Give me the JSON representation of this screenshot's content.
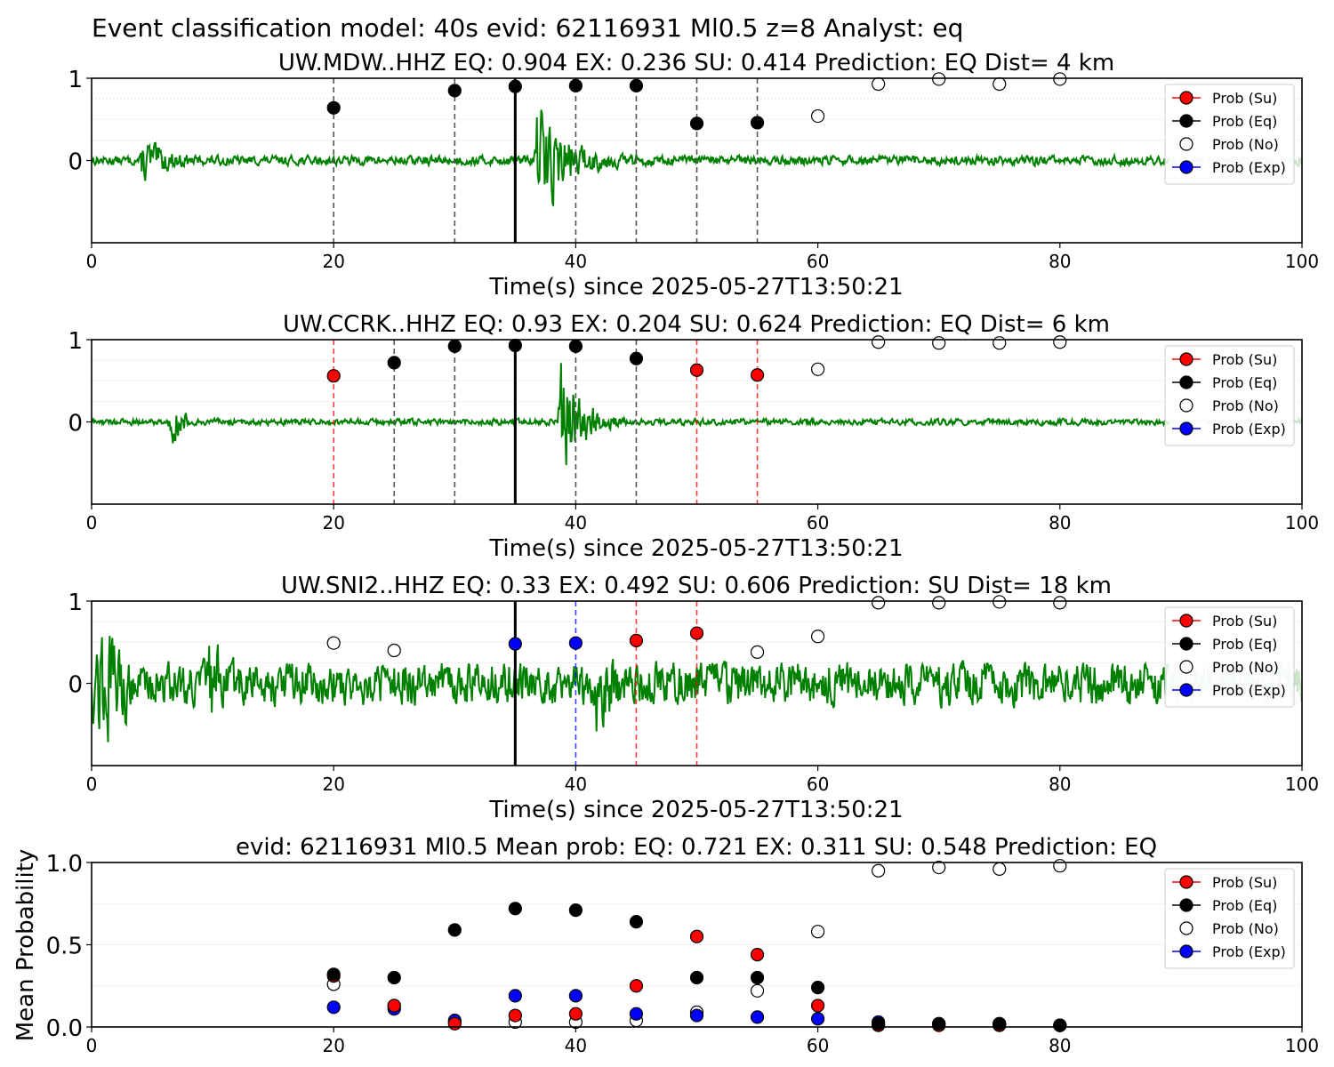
{
  "figure": {
    "suptitle": "Event classification model: 40s evid: 62116931 Ml0.5 z=8 Analyst: eq"
  },
  "colors": {
    "waveform": "#008000",
    "waveform_faded": "#c9e3c9",
    "su": "#ff0000",
    "eq": "#000000",
    "no": "#ffffff",
    "exp": "#0000ff",
    "grid": "#dddddd"
  },
  "legend": {
    "entries": [
      "Prob (Su)",
      "Prob (Eq)",
      "Prob (No)",
      "Prob (Exp)"
    ],
    "placement": "upper-right"
  },
  "chart_data": [
    {
      "type": "line",
      "title": "UW.MDW..HHZ   EQ: 0.904  EX: 0.236  SU: 0.414   Prediction: EQ    Dist= 4 km",
      "xlabel": "Time(s) since 2025-05-27T13:50:21",
      "ylabel": "",
      "xlim": [
        0,
        100
      ],
      "ylim": [
        -1,
        1
      ],
      "xticks": [
        "0",
        "20",
        "40",
        "60",
        "80",
        "100"
      ],
      "yticks": [
        "0",
        "1"
      ],
      "pick_time": 35,
      "window_lines": [
        {
          "x": 20,
          "class": "eq"
        },
        {
          "x": 30,
          "class": "eq"
        },
        {
          "x": 40,
          "class": "eq"
        },
        {
          "x": 45,
          "class": "eq"
        },
        {
          "x": 50,
          "class": "eq"
        },
        {
          "x": 55,
          "class": "eq"
        }
      ],
      "markers": [
        {
          "x": 20,
          "y": 0.64,
          "class": "eq"
        },
        {
          "x": 30,
          "y": 0.85,
          "class": "eq"
        },
        {
          "x": 35,
          "y": 0.9,
          "class": "eq"
        },
        {
          "x": 40,
          "y": 0.91,
          "class": "eq"
        },
        {
          "x": 45,
          "y": 0.91,
          "class": "eq"
        },
        {
          "x": 50,
          "y": 0.45,
          "class": "eq"
        },
        {
          "x": 55,
          "y": 0.46,
          "class": "eq"
        },
        {
          "x": 60,
          "y": 0.54,
          "class": "no"
        },
        {
          "x": 65,
          "y": 0.93,
          "class": "no"
        },
        {
          "x": 70,
          "y": 0.99,
          "class": "no"
        },
        {
          "x": 75,
          "y": 0.93,
          "class": "no"
        },
        {
          "x": 80,
          "y": 0.99,
          "class": "no"
        }
      ],
      "waveform": {
        "noise": 0.06,
        "bursts": [
          {
            "start": 4,
            "end": 8,
            "peak": 0.35,
            "decay": 1.5
          },
          {
            "start": 36.5,
            "end": 46,
            "peak": 0.9,
            "decay": 2.2
          }
        ]
      }
    },
    {
      "type": "line",
      "title": "UW.CCRK..HHZ   EQ: 0.93  EX: 0.204  SU: 0.624   Prediction: EQ    Dist= 6 km",
      "xlabel": "Time(s) since 2025-05-27T13:50:21",
      "ylabel": "",
      "xlim": [
        0,
        100
      ],
      "ylim": [
        -1,
        1
      ],
      "xticks": [
        "0",
        "20",
        "40",
        "60",
        "80",
        "100"
      ],
      "yticks": [
        "0",
        "1"
      ],
      "pick_time": 35,
      "window_lines": [
        {
          "x": 20,
          "class": "su"
        },
        {
          "x": 25,
          "class": "eq"
        },
        {
          "x": 30,
          "class": "eq"
        },
        {
          "x": 40,
          "class": "eq"
        },
        {
          "x": 45,
          "class": "eq"
        },
        {
          "x": 50,
          "class": "su"
        },
        {
          "x": 55,
          "class": "su"
        }
      ],
      "markers": [
        {
          "x": 20,
          "y": 0.56,
          "class": "su"
        },
        {
          "x": 25,
          "y": 0.72,
          "class": "eq"
        },
        {
          "x": 30,
          "y": 0.92,
          "class": "eq"
        },
        {
          "x": 35,
          "y": 0.93,
          "class": "eq"
        },
        {
          "x": 40,
          "y": 0.92,
          "class": "eq"
        },
        {
          "x": 45,
          "y": 0.77,
          "class": "eq"
        },
        {
          "x": 50,
          "y": 0.63,
          "class": "su"
        },
        {
          "x": 55,
          "y": 0.57,
          "class": "su"
        },
        {
          "x": 60,
          "y": 0.64,
          "class": "no"
        },
        {
          "x": 65,
          "y": 0.97,
          "class": "no"
        },
        {
          "x": 70,
          "y": 0.96,
          "class": "no"
        },
        {
          "x": 75,
          "y": 0.96,
          "class": "no"
        },
        {
          "x": 80,
          "y": 0.97,
          "class": "no"
        }
      ],
      "waveform": {
        "noise": 0.04,
        "bursts": [
          {
            "start": 6.3,
            "end": 8,
            "peak": 0.35,
            "decay": 1.0
          },
          {
            "start": 38.5,
            "end": 44,
            "peak": 0.95,
            "decay": 1.6
          }
        ]
      }
    },
    {
      "type": "line",
      "title": "UW.SNI2..HHZ   EQ: 0.33  EX: 0.492  SU: 0.606   Prediction: SU    Dist= 18 km",
      "xlabel": "Time(s) since 2025-05-27T13:50:21",
      "ylabel": "",
      "xlim": [
        0,
        100
      ],
      "ylim": [
        -1,
        1
      ],
      "xticks": [
        "0",
        "20",
        "40",
        "60",
        "80",
        "100"
      ],
      "yticks": [
        "0",
        "1"
      ],
      "pick_time": 35,
      "window_lines": [
        {
          "x": 40,
          "class": "exp"
        },
        {
          "x": 45,
          "class": "su"
        },
        {
          "x": 50,
          "class": "su"
        }
      ],
      "markers": [
        {
          "x": 20,
          "y": 0.49,
          "class": "no"
        },
        {
          "x": 25,
          "y": 0.4,
          "class": "no"
        },
        {
          "x": 35,
          "y": 0.48,
          "class": "exp"
        },
        {
          "x": 40,
          "y": 0.49,
          "class": "exp"
        },
        {
          "x": 45,
          "y": 0.52,
          "class": "su"
        },
        {
          "x": 50,
          "y": 0.61,
          "class": "su"
        },
        {
          "x": 55,
          "y": 0.38,
          "class": "no"
        },
        {
          "x": 60,
          "y": 0.57,
          "class": "no"
        },
        {
          "x": 65,
          "y": 0.98,
          "class": "no"
        },
        {
          "x": 70,
          "y": 0.98,
          "class": "no"
        },
        {
          "x": 75,
          "y": 0.99,
          "class": "no"
        },
        {
          "x": 80,
          "y": 0.98,
          "class": "no"
        }
      ],
      "waveform": {
        "noise": 0.28,
        "bursts": [
          {
            "start": 0,
            "end": 3,
            "peak": 0.75,
            "decay": 2.5
          },
          {
            "start": 9.5,
            "end": 10.5,
            "peak": 0.8,
            "decay": 0.6
          },
          {
            "start": 41.5,
            "end": 43.5,
            "peak": 0.95,
            "decay": 0.8
          }
        ]
      }
    },
    {
      "type": "scatter",
      "title": "evid: 62116931  Ml0.5   Mean prob:   EQ: 0.721  EX: 0.311  SU: 0.548   Prediction: EQ",
      "xlabel": "",
      "ylabel": "Mean Probability",
      "xlim": [
        0,
        100
      ],
      "ylim": [
        0,
        1
      ],
      "xticks": [
        "0",
        "20",
        "40",
        "60",
        "80",
        "100"
      ],
      "yticks": [
        "0.0",
        "0.5",
        "1.0"
      ],
      "x": [
        20,
        25,
        30,
        35,
        40,
        45,
        50,
        55,
        60,
        65,
        70,
        75,
        80
      ],
      "series": [
        {
          "name": "Prob (No)",
          "class": "no",
          "values": [
            0.26,
            0.13,
            0.03,
            0.03,
            0.03,
            0.04,
            0.09,
            0.22,
            0.58,
            0.95,
            0.97,
            0.96,
            0.98
          ]
        },
        {
          "name": "Prob (Exp)",
          "class": "exp",
          "values": [
            0.12,
            0.11,
            0.04,
            0.19,
            0.19,
            0.08,
            0.07,
            0.06,
            0.05,
            0.03,
            0.02,
            0.02,
            0.01
          ]
        },
        {
          "name": "Prob (Su)",
          "class": "su",
          "values": [
            0.31,
            0.13,
            0.02,
            0.07,
            0.08,
            0.25,
            0.55,
            0.44,
            0.13,
            0.01,
            0.01,
            0.01,
            0.01
          ]
        },
        {
          "name": "Prob (Eq)",
          "class": "eq",
          "values": [
            0.32,
            0.3,
            0.59,
            0.72,
            0.71,
            0.64,
            0.3,
            0.3,
            0.24,
            0.02,
            0.02,
            0.02,
            0.01
          ]
        }
      ]
    }
  ]
}
